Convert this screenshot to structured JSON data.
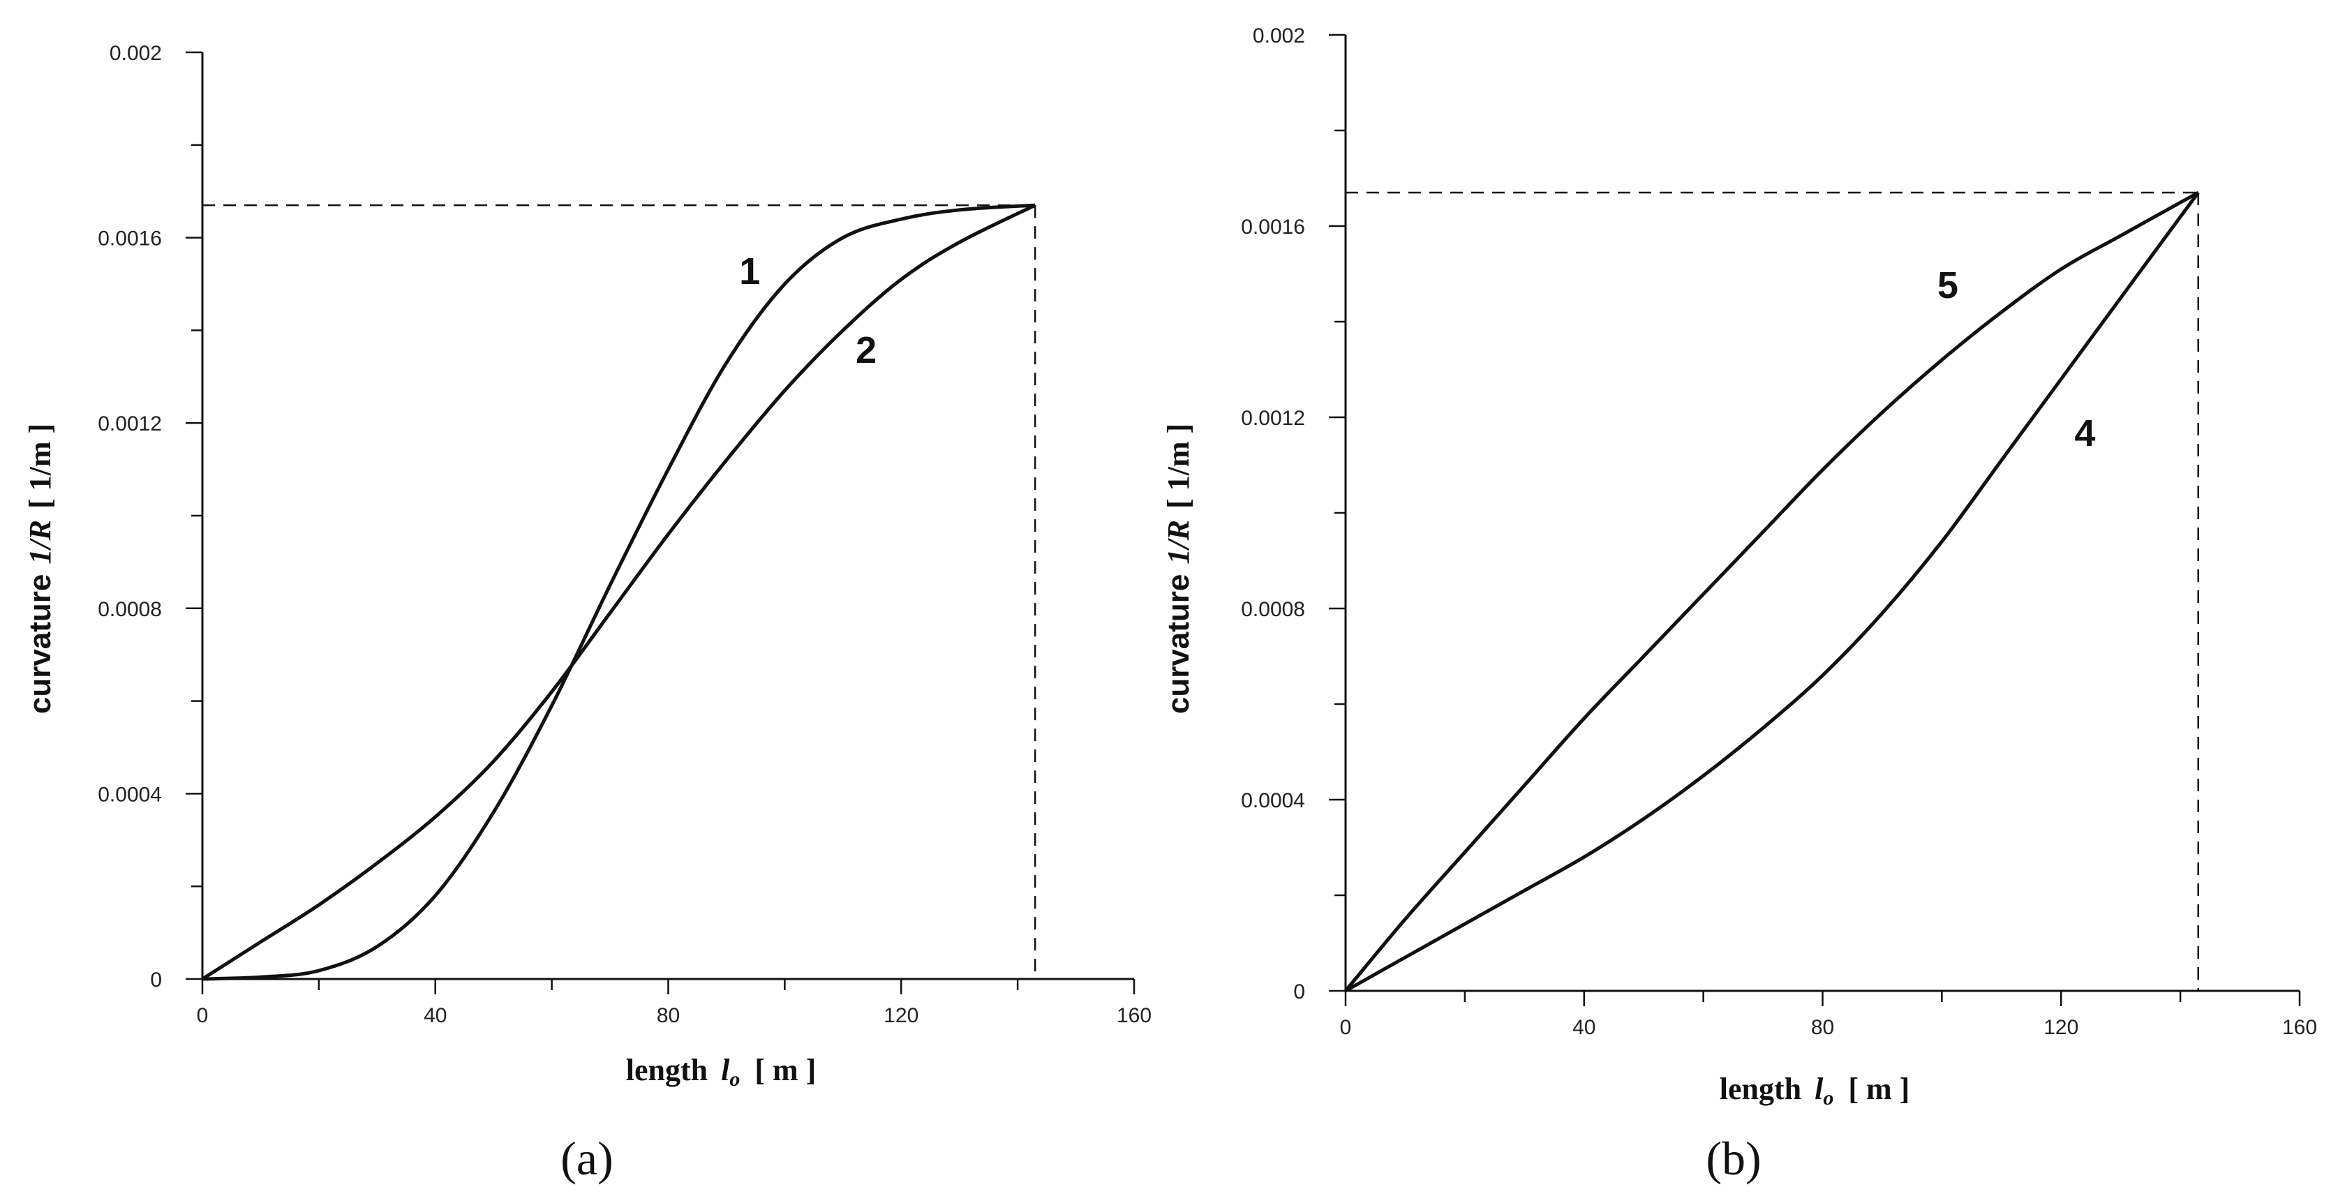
{
  "chart_data": [
    {
      "type": "line",
      "panel_label": "(a)",
      "xlabel": {
        "prefix": "length",
        "symbol": "l",
        "subscript": "o",
        "unit": "[ m ]"
      },
      "ylabel": {
        "prefix": "curvature",
        "symbol": "1/R",
        "unit": "[ 1/m ]"
      },
      "xlim": [
        0,
        160
      ],
      "ylim": [
        0,
        0.002
      ],
      "x_ticks": [
        0,
        40,
        80,
        120,
        160
      ],
      "x_tick_labels": [
        "0",
        "40",
        "80",
        "120",
        "160"
      ],
      "y_ticks": [
        0,
        0.0004,
        0.0008,
        0.0012,
        0.0016,
        0.002
      ],
      "y_tick_labels": [
        "0",
        "0.0004",
        "0.0008",
        "0.0012",
        "0.0016",
        "0.002"
      ],
      "reference": {
        "x": 143,
        "y": 0.00167
      },
      "series": [
        {
          "name": "1",
          "x": [
            0,
            10,
            20,
            30,
            40,
            50,
            60,
            70,
            80,
            90,
            100,
            110,
            120,
            130,
            143
          ],
          "y": [
            0,
            4e-06,
            1.8e-05,
            7e-05,
            0.00018,
            0.00036,
            0.00059,
            0.00085,
            0.0011,
            0.00133,
            0.0015,
            0.0016,
            0.00164,
            0.00166,
            0.00167
          ],
          "label_at": [
            94,
            0.0015
          ]
        },
        {
          "name": "2",
          "x": [
            0,
            10,
            20,
            30,
            40,
            50,
            60,
            70,
            80,
            90,
            100,
            110,
            120,
            130,
            143
          ],
          "y": [
            0,
            8e-05,
            0.00016,
            0.00025,
            0.00035,
            0.00047,
            0.00062,
            0.00079,
            0.00096,
            0.00112,
            0.00127,
            0.0014,
            0.00151,
            0.00159,
            0.00167
          ],
          "label_at": [
            114,
            0.00133
          ]
        }
      ]
    },
    {
      "type": "line",
      "panel_label": "(b)",
      "xlabel": {
        "prefix": "length",
        "symbol": "l",
        "subscript": "o",
        "unit": "[ m ]"
      },
      "ylabel": {
        "prefix": "curvature",
        "symbol": "1/R",
        "unit": "[ 1/m ]"
      },
      "xlim": [
        0,
        160
      ],
      "ylim": [
        0,
        0.002
      ],
      "x_ticks": [
        0,
        40,
        80,
        120,
        160
      ],
      "x_tick_labels": [
        "0",
        "40",
        "80",
        "120",
        "160"
      ],
      "y_ticks": [
        0,
        0.0004,
        0.0008,
        0.0012,
        0.0016,
        0.002
      ],
      "y_tick_labels": [
        "0",
        "0.0004",
        "0.0008",
        "0.0012",
        "0.0016",
        "0.002"
      ],
      "reference": {
        "x": 143,
        "y": 0.00167
      },
      "series": [
        {
          "name": "5",
          "x": [
            0,
            10,
            20,
            30,
            40,
            50,
            60,
            70,
            80,
            90,
            100,
            110,
            120,
            130,
            143
          ],
          "y": [
            0,
            0.00015,
            0.00029,
            0.00043,
            0.00057,
            0.0007,
            0.00083,
            0.00096,
            0.00109,
            0.00121,
            0.00132,
            0.00142,
            0.00151,
            0.00158,
            0.00167
          ],
          "label_at": [
            101,
            0.00145
          ]
        },
        {
          "name": "4",
          "x": [
            0,
            10,
            20,
            30,
            40,
            50,
            60,
            70,
            80,
            90,
            100,
            110,
            120,
            130,
            143
          ],
          "y": [
            0,
            7e-05,
            0.00014,
            0.00021,
            0.00028,
            0.00036,
            0.00045,
            0.00055,
            0.00066,
            0.00079,
            0.00094,
            0.00111,
            0.00128,
            0.00145,
            0.00167
          ],
          "label_at": [
            124,
            0.00114
          ]
        }
      ]
    }
  ]
}
